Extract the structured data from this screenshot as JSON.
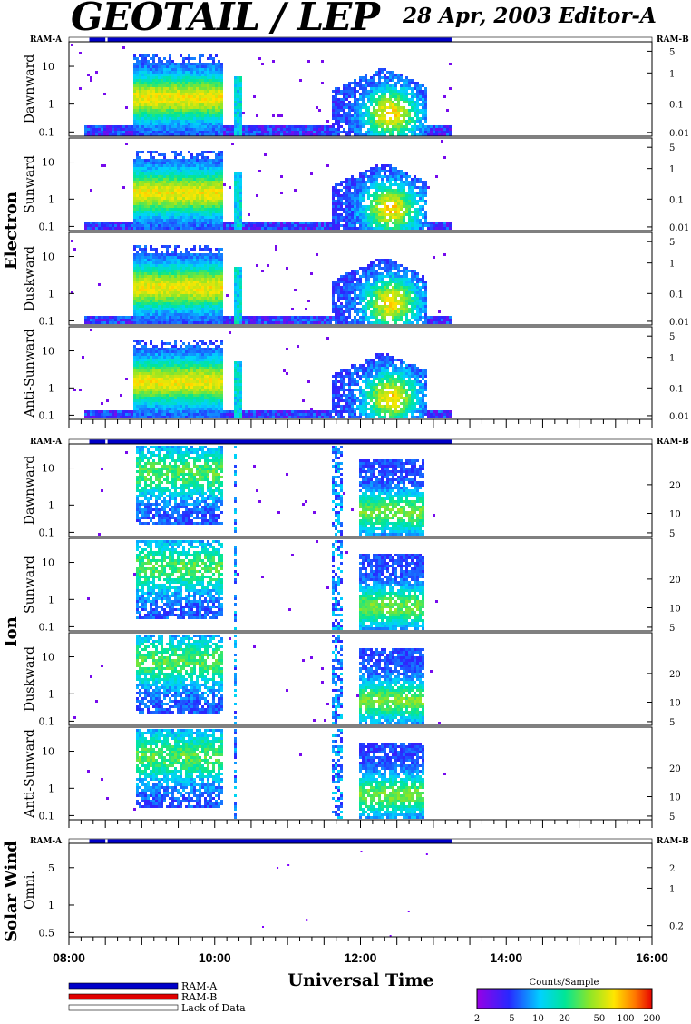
{
  "header": {
    "title": "GEOTAIL / LEP",
    "date": "28 Apr, 2003",
    "editor": "Editor-A"
  },
  "ram_labels": {
    "left": "RAM-A",
    "right": "RAM-B"
  },
  "colors": {
    "ram_a": "#0000c8",
    "ram_b": "#e00000",
    "lack": "#ffffff"
  },
  "chart_data": [
    {
      "type": "heatmap",
      "group": "Electron",
      "panels": [
        {
          "name": "Dawnward",
          "left_ticks": [
            "10",
            "1",
            "0.1"
          ],
          "right_ticks": [
            "5",
            "1",
            "0.1",
            "0.01"
          ]
        },
        {
          "name": "Sunward",
          "left_ticks": [
            "10",
            "1",
            "0.1"
          ],
          "right_ticks": [
            "5",
            "1",
            "0.1",
            "0.01"
          ]
        },
        {
          "name": "Duskward",
          "left_ticks": [
            "10",
            "1",
            "0.1"
          ],
          "right_ticks": [
            "5",
            "1",
            "0.1",
            "0.01"
          ]
        },
        {
          "name": "Anti-Sunward",
          "left_ticks": [
            "10",
            "1",
            "0.1"
          ],
          "right_ticks": [
            "5",
            "1",
            "0.1",
            "0.01"
          ]
        }
      ]
    },
    {
      "type": "heatmap",
      "group": "Ion",
      "panels": [
        {
          "name": "Dawnward",
          "left_ticks": [
            "10",
            "1",
            "0.1"
          ],
          "right_ticks": [
            "20",
            "10",
            "5"
          ]
        },
        {
          "name": "Sunward",
          "left_ticks": [
            "10",
            "1",
            "0.1"
          ],
          "right_ticks": [
            "20",
            "10",
            "5"
          ]
        },
        {
          "name": "Duskward",
          "left_ticks": [
            "10",
            "1",
            "0.1"
          ],
          "right_ticks": [
            "20",
            "10",
            "5"
          ]
        },
        {
          "name": "Anti-Sunward",
          "left_ticks": [
            "10",
            "1",
            "0.1"
          ],
          "right_ticks": [
            "20",
            "10",
            "5"
          ]
        }
      ]
    },
    {
      "type": "scatter",
      "group": "Solar Wind",
      "panels": [
        {
          "name": "Omni.",
          "left_ticks": [
            "5",
            "1",
            "0.5"
          ],
          "right_ticks": [
            "2",
            "1",
            "0.2"
          ]
        }
      ]
    }
  ],
  "x_axis": {
    "label": "Universal Time",
    "ticks": [
      "08:00",
      "10:00",
      "12:00",
      "14:00",
      "16:00"
    ],
    "range_hours": [
      8,
      16
    ],
    "data_end_hours": 13.25
  },
  "ram_bar": {
    "start_hours": 8.28,
    "gap_hours": [
      8.5,
      8.53
    ],
    "end_hours": 13.25
  },
  "legend": {
    "items": [
      {
        "label": "RAM-A",
        "color": "#0000c8"
      },
      {
        "label": "RAM-B",
        "color": "#e00000"
      },
      {
        "label": "Lack of Data",
        "color": "#ffffff"
      }
    ]
  },
  "colorbar": {
    "title": "Counts/Sample",
    "ticks": [
      "2",
      "5",
      "10",
      "20",
      "50",
      "100",
      "200"
    ]
  }
}
